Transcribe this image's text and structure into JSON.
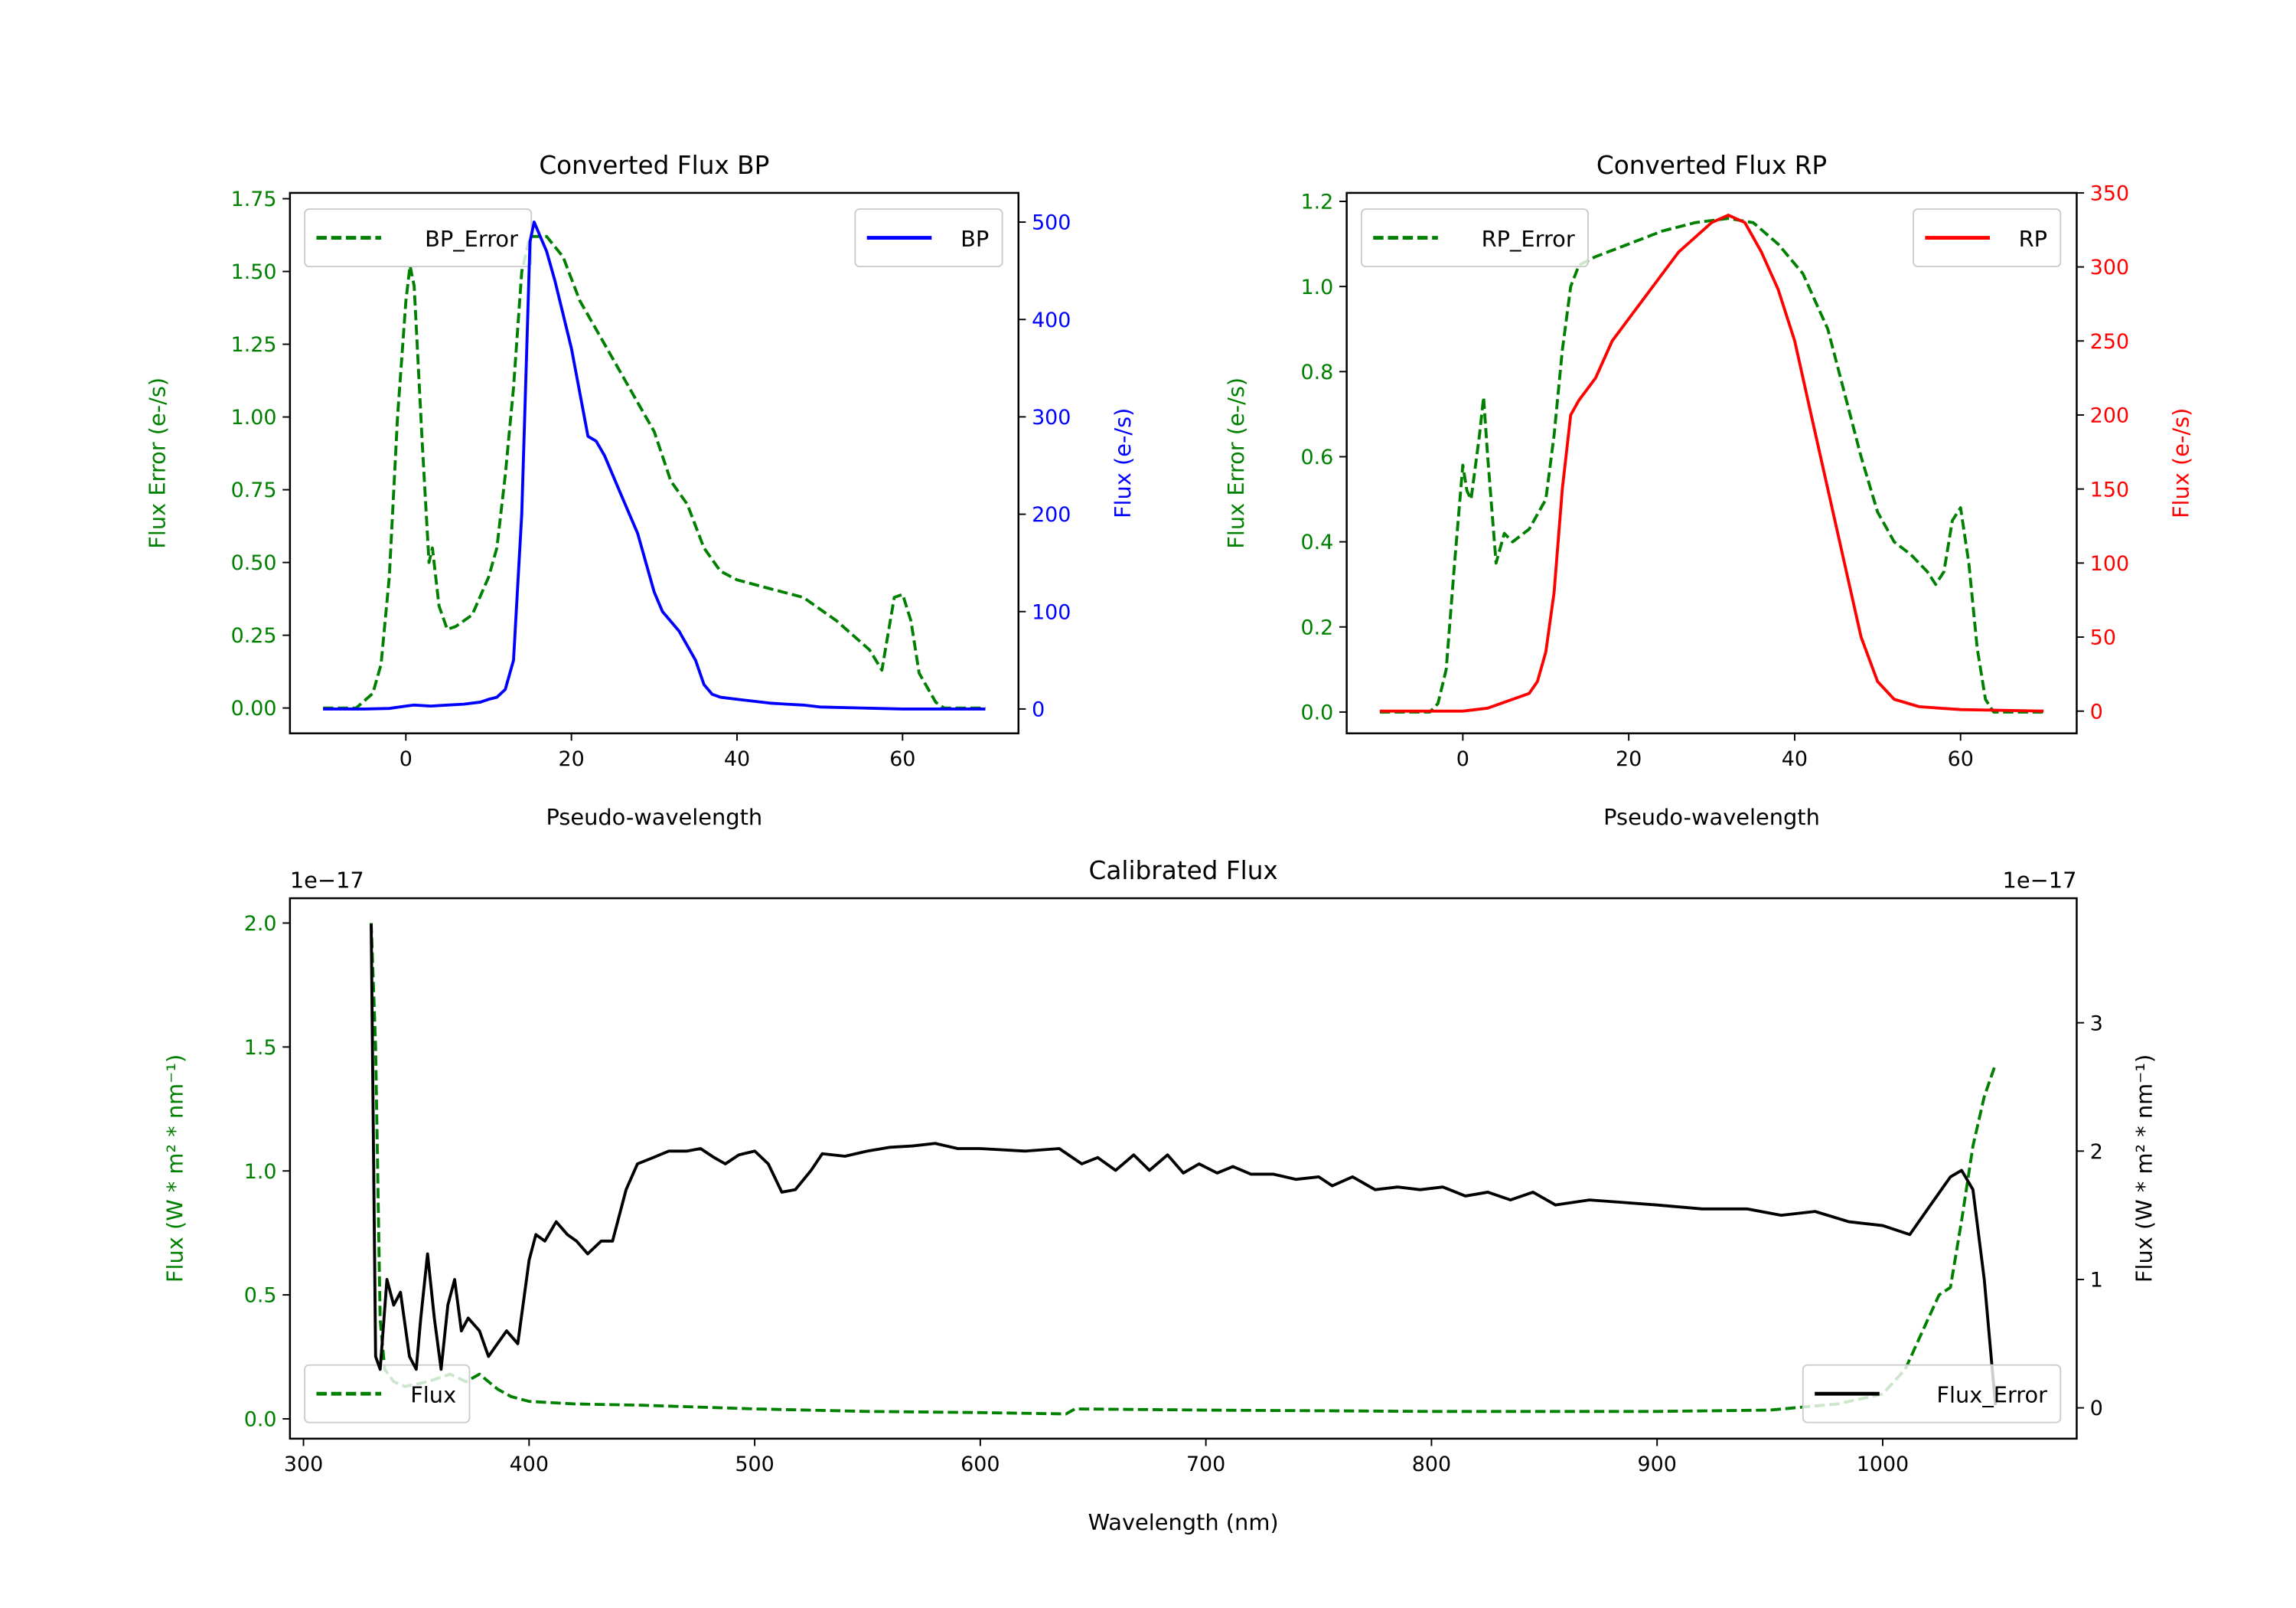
{
  "chart_data": [
    {
      "type": "line",
      "title": "Converted Flux BP",
      "xlabel": "Pseudo-wavelength",
      "ylabel_left": "Flux Error (e-/s)",
      "ylabel_right": "Flux (e-/s)",
      "left_color": "#008000",
      "right_color": "#0000ff",
      "xlim": [
        -14,
        74
      ],
      "ylim_left": [
        -0.087,
        1.77
      ],
      "ylim_right": [
        -25,
        530
      ],
      "xticks": [
        "0",
        "20",
        "40",
        "60"
      ],
      "xtick_values": [
        0,
        20,
        40,
        60
      ],
      "yticks_left": [
        "0.00",
        "0.25",
        "0.50",
        "0.75",
        "1.00",
        "1.25",
        "1.50",
        "1.75"
      ],
      "ytick_left_values": [
        0,
        0.25,
        0.5,
        0.75,
        1.0,
        1.25,
        1.5,
        1.75
      ],
      "yticks_right": [
        "0",
        "100",
        "200",
        "300",
        "400",
        "500"
      ],
      "ytick_right_values": [
        0,
        100,
        200,
        300,
        400,
        500
      ],
      "legend_left": {
        "label": "BP_Error",
        "placement": "upper-left"
      },
      "legend_right": {
        "label": "BP",
        "placement": "upper-right"
      },
      "series": [
        {
          "name": "BP_Error",
          "axis": "left",
          "color": "#008000",
          "style": "dashed",
          "x": [
            -10,
            -6,
            -4,
            -3,
            -2,
            -1,
            0,
            0.5,
            1,
            2,
            2.8,
            3.2,
            4,
            5,
            6,
            8,
            10,
            11,
            12,
            13,
            14,
            15,
            17,
            19,
            21,
            24,
            27,
            30,
            32,
            34,
            36,
            38,
            40,
            44,
            48,
            52,
            56,
            57.5,
            59,
            60,
            61,
            62,
            64,
            65,
            70
          ],
          "y": [
            0,
            0,
            0.05,
            0.15,
            0.45,
            1.0,
            1.4,
            1.52,
            1.45,
            0.9,
            0.5,
            0.55,
            0.35,
            0.27,
            0.28,
            0.32,
            0.45,
            0.55,
            0.8,
            1.1,
            1.5,
            1.62,
            1.62,
            1.55,
            1.4,
            1.25,
            1.1,
            0.95,
            0.78,
            0.7,
            0.55,
            0.47,
            0.44,
            0.41,
            0.38,
            0.3,
            0.2,
            0.13,
            0.38,
            0.39,
            0.3,
            0.12,
            0.02,
            0,
            0
          ]
        },
        {
          "name": "BP",
          "axis": "right",
          "color": "#0000ff",
          "style": "solid",
          "x": [
            -10,
            -5,
            -2,
            0,
            1,
            3,
            5,
            7,
            9,
            10,
            11,
            12,
            13,
            14,
            15,
            15.5,
            17,
            18,
            20,
            22,
            23,
            24,
            26,
            28,
            30,
            31,
            33,
            35,
            36,
            37,
            38,
            40,
            42,
            44,
            46,
            48,
            50,
            55,
            60,
            70
          ],
          "y": [
            0,
            0,
            0.5,
            3,
            4,
            3,
            4,
            5,
            7,
            10,
            12,
            20,
            50,
            200,
            480,
            500,
            470,
            440,
            370,
            280,
            275,
            260,
            220,
            180,
            120,
            100,
            80,
            50,
            25,
            15,
            12,
            10,
            8,
            6,
            5,
            4,
            2,
            1,
            0,
            0
          ]
        }
      ]
    },
    {
      "type": "line",
      "title": "Converted Flux RP",
      "xlabel": "Pseudo-wavelength",
      "ylabel_left": "Flux Error (e-/s)",
      "ylabel_right": "Flux (e-/s)",
      "left_color": "#008000",
      "right_color": "#ff0000",
      "xlim": [
        -14,
        74
      ],
      "ylim_left": [
        -0.05,
        1.22
      ],
      "ylim_right": [
        -15,
        350
      ],
      "xticks": [
        "0",
        "20",
        "40",
        "60"
      ],
      "xtick_values": [
        0,
        20,
        40,
        60
      ],
      "yticks_left": [
        "0.0",
        "0.2",
        "0.4",
        "0.6",
        "0.8",
        "1.0",
        "1.2"
      ],
      "ytick_left_values": [
        0,
        0.2,
        0.4,
        0.6,
        0.8,
        1.0,
        1.2
      ],
      "yticks_right": [
        "0",
        "50",
        "100",
        "150",
        "200",
        "250",
        "300",
        "350"
      ],
      "ytick_right_values": [
        0,
        50,
        100,
        150,
        200,
        250,
        300,
        350
      ],
      "legend_left": {
        "label": "RP_Error",
        "placement": "upper-left"
      },
      "legend_right": {
        "label": "RP",
        "placement": "upper-right"
      },
      "series": [
        {
          "name": "RP_Error",
          "axis": "left",
          "color": "#008000",
          "style": "dashed",
          "x": [
            -10,
            -4,
            -3,
            -2,
            -1,
            0,
            0.5,
            1,
            2,
            2.5,
            3,
            4,
            5,
            6,
            8,
            10,
            11,
            12,
            13,
            14,
            16,
            20,
            24,
            28,
            32,
            35,
            38,
            41,
            44,
            46,
            48,
            50,
            52,
            54,
            56,
            57,
            58,
            59,
            60,
            61,
            62,
            63,
            64,
            70
          ],
          "y": [
            0,
            0,
            0.02,
            0.1,
            0.35,
            0.58,
            0.52,
            0.5,
            0.65,
            0.74,
            0.6,
            0.35,
            0.42,
            0.4,
            0.43,
            0.5,
            0.65,
            0.85,
            1.0,
            1.05,
            1.07,
            1.1,
            1.13,
            1.15,
            1.16,
            1.15,
            1.1,
            1.03,
            0.9,
            0.75,
            0.6,
            0.47,
            0.4,
            0.37,
            0.33,
            0.3,
            0.33,
            0.45,
            0.48,
            0.35,
            0.15,
            0.03,
            0,
            0
          ]
        },
        {
          "name": "RP",
          "axis": "right",
          "color": "#ff0000",
          "style": "solid",
          "x": [
            -10,
            0,
            3,
            6,
            8,
            9,
            10,
            11,
            12,
            13,
            14,
            16,
            18,
            20,
            22,
            24,
            26,
            28,
            30,
            32,
            34,
            36,
            38,
            40,
            42,
            44,
            46,
            48,
            50,
            52,
            55,
            60,
            70
          ],
          "y": [
            0,
            0,
            2,
            8,
            12,
            20,
            40,
            80,
            150,
            200,
            210,
            225,
            250,
            265,
            280,
            295,
            310,
            320,
            330,
            335,
            330,
            310,
            285,
            250,
            200,
            150,
            100,
            50,
            20,
            8,
            3,
            1,
            0
          ]
        }
      ]
    },
    {
      "type": "line",
      "title": "Calibrated Flux",
      "xlabel": "Wavelength (nm)",
      "ylabel_left": "Flux (W * m² * nm⁻¹)",
      "ylabel_right": "Flux (W * m² * nm⁻¹)",
      "left_color": "#008000",
      "right_color": "#000000",
      "offset_left": "1e−17",
      "offset_right": "1e−17",
      "xlim": [
        294,
        1086
      ],
      "ylim_left": [
        -0.08,
        2.1
      ],
      "ylim_right": [
        -0.24,
        3.97
      ],
      "xticks": [
        "300",
        "400",
        "500",
        "600",
        "700",
        "800",
        "900",
        "1000"
      ],
      "xtick_values": [
        300,
        400,
        500,
        600,
        700,
        800,
        900,
        1000
      ],
      "yticks_left": [
        "0.0",
        "0.5",
        "1.0",
        "1.5",
        "2.0"
      ],
      "ytick_left_values": [
        0,
        0.5,
        1.0,
        1.5,
        2.0
      ],
      "yticks_right": [
        "0",
        "1",
        "2",
        "3"
      ],
      "ytick_right_values": [
        0,
        1,
        2,
        3
      ],
      "legend_left": {
        "label": "Flux",
        "placement": "lower-left"
      },
      "legend_right": {
        "label": "Flux_Error",
        "placement": "lower-right"
      },
      "series": [
        {
          "name": "Flux_Error",
          "axis": "left",
          "color": "#008000",
          "style": "dashed",
          "x": [
            330,
            332,
            334,
            336,
            340,
            345,
            355,
            365,
            372,
            378,
            382,
            386,
            392,
            400,
            420,
            450,
            500,
            550,
            600,
            638,
            642,
            700,
            800,
            900,
            950,
            980,
            1000,
            1010,
            1020,
            1025,
            1030,
            1035,
            1040,
            1045,
            1050
          ],
          "y": [
            2.0,
            1.5,
            0.4,
            0.2,
            0.15,
            0.13,
            0.15,
            0.18,
            0.15,
            0.18,
            0.15,
            0.12,
            0.09,
            0.07,
            0.06,
            0.055,
            0.04,
            0.03,
            0.025,
            0.02,
            0.04,
            0.035,
            0.03,
            0.03,
            0.035,
            0.06,
            0.1,
            0.2,
            0.4,
            0.5,
            0.53,
            0.8,
            1.1,
            1.3,
            1.43
          ]
        },
        {
          "name": "Flux",
          "axis": "right",
          "color": "#000000",
          "style": "solid",
          "x": [
            330,
            332,
            334,
            337,
            340,
            343,
            347,
            350,
            352,
            355,
            358,
            361,
            364,
            367,
            370,
            373,
            378,
            382,
            386,
            390,
            395,
            400,
            403,
            407,
            412,
            417,
            421,
            426,
            432,
            437,
            443,
            448,
            455,
            462,
            470,
            476,
            482,
            487,
            493,
            500,
            506,
            512,
            518,
            525,
            530,
            540,
            550,
            560,
            570,
            580,
            590,
            600,
            620,
            635,
            645,
            652,
            660,
            668,
            675,
            683,
            690,
            697,
            705,
            712,
            720,
            730,
            740,
            750,
            756,
            765,
            775,
            785,
            795,
            805,
            815,
            825,
            835,
            845,
            855,
            870,
            885,
            900,
            920,
            940,
            955,
            970,
            985,
            1000,
            1012,
            1020,
            1030,
            1035,
            1040,
            1045,
            1050
          ],
          "y": [
            3.77,
            0.4,
            0.3,
            1.0,
            0.8,
            0.9,
            0.4,
            0.3,
            0.7,
            1.2,
            0.7,
            0.3,
            0.8,
            1.0,
            0.6,
            0.7,
            0.6,
            0.4,
            0.5,
            0.6,
            0.5,
            1.15,
            1.35,
            1.3,
            1.45,
            1.35,
            1.3,
            1.2,
            1.3,
            1.3,
            1.7,
            1.9,
            1.95,
            2.0,
            2.0,
            2.02,
            1.95,
            1.9,
            1.97,
            2.0,
            1.9,
            1.68,
            1.7,
            1.85,
            1.98,
            1.96,
            2.0,
            2.03,
            2.04,
            2.06,
            2.02,
            2.02,
            2.0,
            2.02,
            1.9,
            1.95,
            1.85,
            1.97,
            1.85,
            1.97,
            1.83,
            1.9,
            1.83,
            1.88,
            1.82,
            1.82,
            1.78,
            1.8,
            1.73,
            1.8,
            1.7,
            1.72,
            1.7,
            1.72,
            1.65,
            1.68,
            1.62,
            1.68,
            1.58,
            1.62,
            1.6,
            1.58,
            1.55,
            1.55,
            1.5,
            1.53,
            1.45,
            1.42,
            1.35,
            1.55,
            1.8,
            1.85,
            1.7,
            1.0,
            0.02
          ]
        }
      ]
    }
  ]
}
